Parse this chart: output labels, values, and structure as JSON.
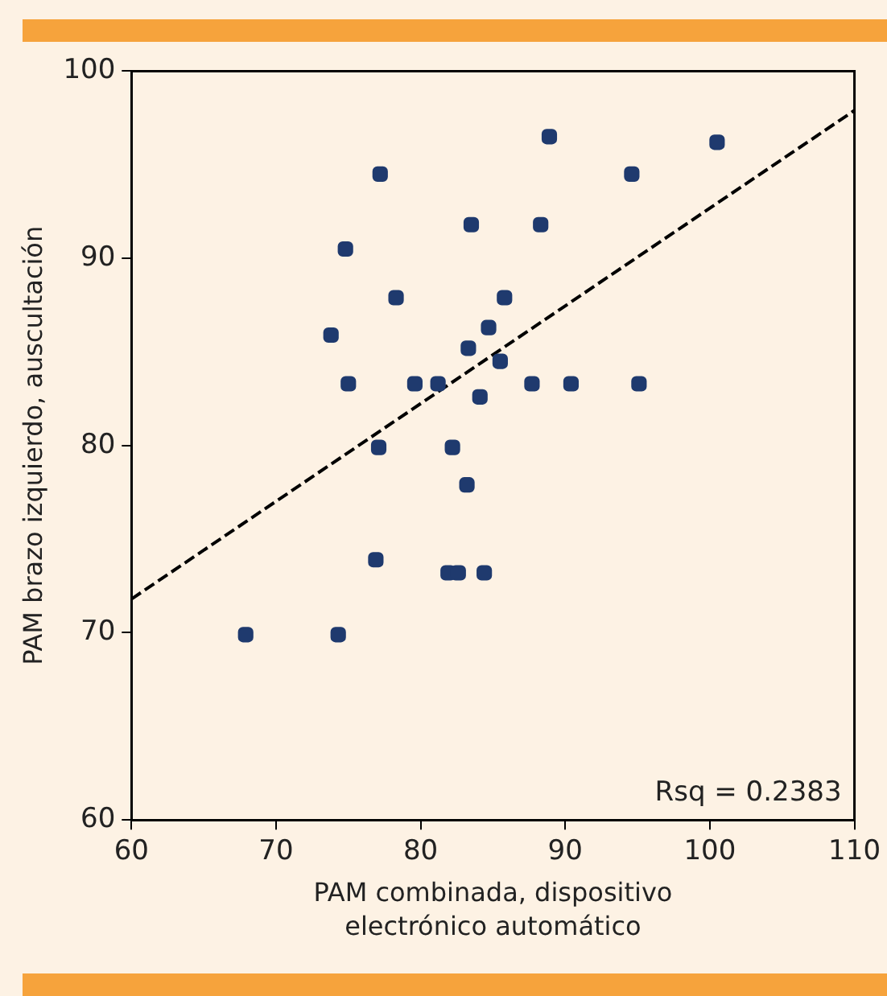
{
  "chart_data": {
    "type": "scatter",
    "xlabel": "PAM combinada, dispositivo electrónico automático",
    "ylabel": "PAM brazo izquierdo, auscultación",
    "xlim": [
      60,
      110
    ],
    "xticks": [
      60,
      70,
      80,
      90,
      100,
      110
    ],
    "ylim": [
      60,
      100
    ],
    "yticks": [
      60,
      70,
      80,
      90,
      100
    ],
    "grid": false,
    "legend": false,
    "marker": "square",
    "annotations": [
      "Rsq = 0.2383"
    ],
    "series": [
      {
        "color": "#1f3a6e",
        "x": [
          77.2,
          83.5,
          74.8,
          78.3,
          73.8,
          84.7,
          83.3,
          75.0,
          79.6,
          81.2,
          84.1,
          77.1,
          82.2,
          83.2,
          88.9,
          100.5,
          94.6,
          88.3,
          85.8,
          85.5,
          87.7,
          90.4,
          95.1,
          76.9,
          81.9,
          82.6,
          84.4,
          67.9,
          74.3
        ],
        "values": [
          94.5,
          91.8,
          90.5,
          87.9,
          85.9,
          86.3,
          85.2,
          83.3,
          83.3,
          83.3,
          82.6,
          79.9,
          79.9,
          77.9,
          96.5,
          96.2,
          94.5,
          91.8,
          87.9,
          84.5,
          83.3,
          83.3,
          83.3,
          73.9,
          73.2,
          73.2,
          73.2,
          69.9,
          69.9
        ]
      },
      {
        "type": "line",
        "color": "#000000",
        "line_style": "dashed",
        "marker": "none",
        "x": [
          60,
          110
        ],
        "values": [
          71.8,
          97.9
        ]
      }
    ]
  }
}
